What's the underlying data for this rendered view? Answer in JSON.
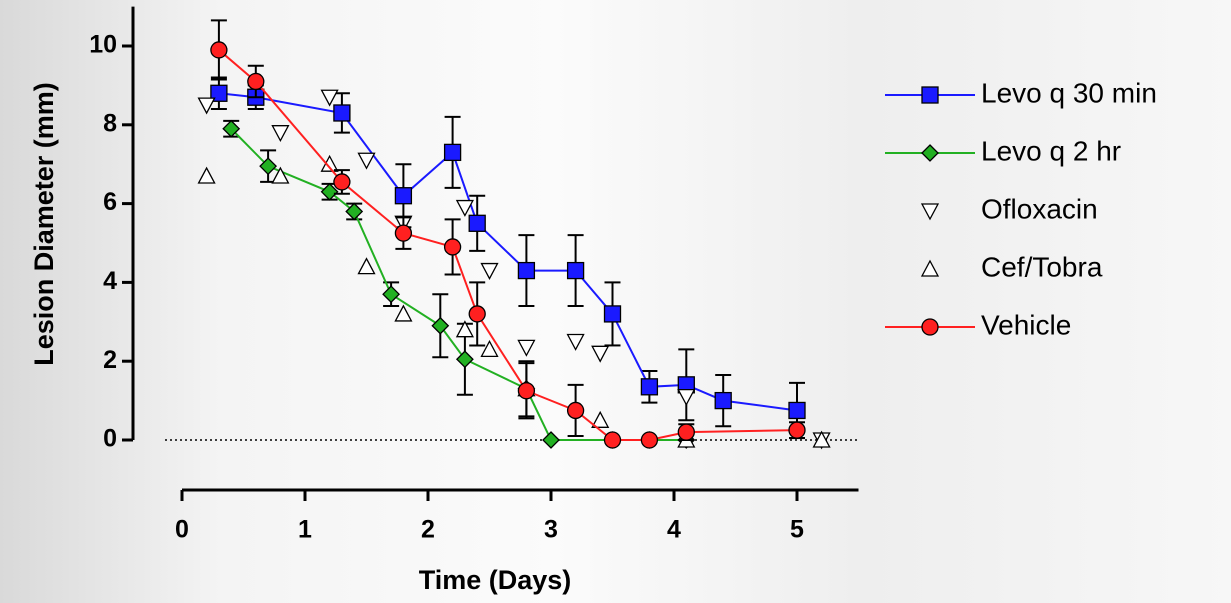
{
  "chart_data": {
    "type": "scatter",
    "x_label": "Time (Days)",
    "y_label": "Lesion Diameter (mm)",
    "xlim": [
      0,
      5.5
    ],
    "ylim": [
      0,
      11
    ],
    "xticks": [
      0,
      1,
      2,
      3,
      4,
      5
    ],
    "yticks": [
      0,
      2,
      4,
      6,
      8,
      10
    ],
    "series": [
      {
        "name": "Levo q 30 min",
        "color": "#1a1aff",
        "marker": "square",
        "line": true,
        "x": [
          0.3,
          0.6,
          1.3,
          1.8,
          2.2,
          2.4,
          2.8,
          3.2,
          3.5,
          3.8,
          4.1,
          4.4,
          5.0
        ],
        "values": [
          8.8,
          8.7,
          8.3,
          6.2,
          7.3,
          5.5,
          4.3,
          4.3,
          3.2,
          1.35,
          1.4,
          1.0,
          0.75
        ],
        "errors": [
          0.4,
          0.3,
          0.5,
          0.8,
          0.9,
          0.7,
          0.9,
          0.9,
          0.8,
          0.4,
          0.9,
          0.65,
          0.7
        ]
      },
      {
        "name": "Levo q 2 hr",
        "color": "#22b022",
        "marker": "diamond",
        "line": true,
        "x": [
          0.4,
          0.7,
          1.2,
          1.4,
          1.7,
          2.1,
          2.3,
          2.8,
          3.0,
          3.5,
          3.8,
          4.1
        ],
        "values": [
          7.9,
          6.95,
          6.3,
          5.8,
          3.7,
          2.9,
          2.05,
          1.3,
          0,
          0,
          0,
          0
        ],
        "errors": [
          0.2,
          0.4,
          0.2,
          0.2,
          0.3,
          0.8,
          0.9,
          0.7,
          0,
          0,
          0,
          0
        ]
      },
      {
        "name": "Ofloxacin",
        "color": "#ffffff",
        "marker": "triangle-down",
        "line": false,
        "x": [
          0.2,
          0.8,
          1.2,
          1.5,
          1.8,
          2.3,
          2.5,
          2.8,
          3.2,
          3.4,
          4.1,
          5.2
        ],
        "values": [
          8.5,
          7.8,
          8.7,
          7.1,
          5.5,
          5.9,
          4.3,
          2.35,
          2.5,
          2.2,
          1.1,
          0
        ]
      },
      {
        "name": "Cef/Tobra",
        "color": "#ffffff",
        "marker": "triangle-up",
        "line": false,
        "x": [
          0.2,
          0.8,
          1.2,
          1.5,
          1.8,
          2.3,
          2.5,
          2.8,
          3.4,
          4.1,
          5.2
        ],
        "values": [
          6.7,
          6.7,
          7.0,
          4.4,
          3.2,
          2.8,
          2.3,
          1.3,
          0.5,
          0,
          0
        ]
      },
      {
        "name": "Vehicle",
        "color": "#ff2020",
        "marker": "circle",
        "line": true,
        "x": [
          0.3,
          0.6,
          1.3,
          1.8,
          2.2,
          2.4,
          2.8,
          3.2,
          3.5,
          3.8,
          4.1,
          5.0
        ],
        "values": [
          9.9,
          9.1,
          6.55,
          5.25,
          4.9,
          3.2,
          1.25,
          0.75,
          0,
          0,
          0.2,
          0.25
        ],
        "errors": [
          0.75,
          0.4,
          0.3,
          0.4,
          0.7,
          0.8,
          0.7,
          0.65,
          0,
          0,
          0.2,
          0.2
        ]
      }
    ]
  }
}
